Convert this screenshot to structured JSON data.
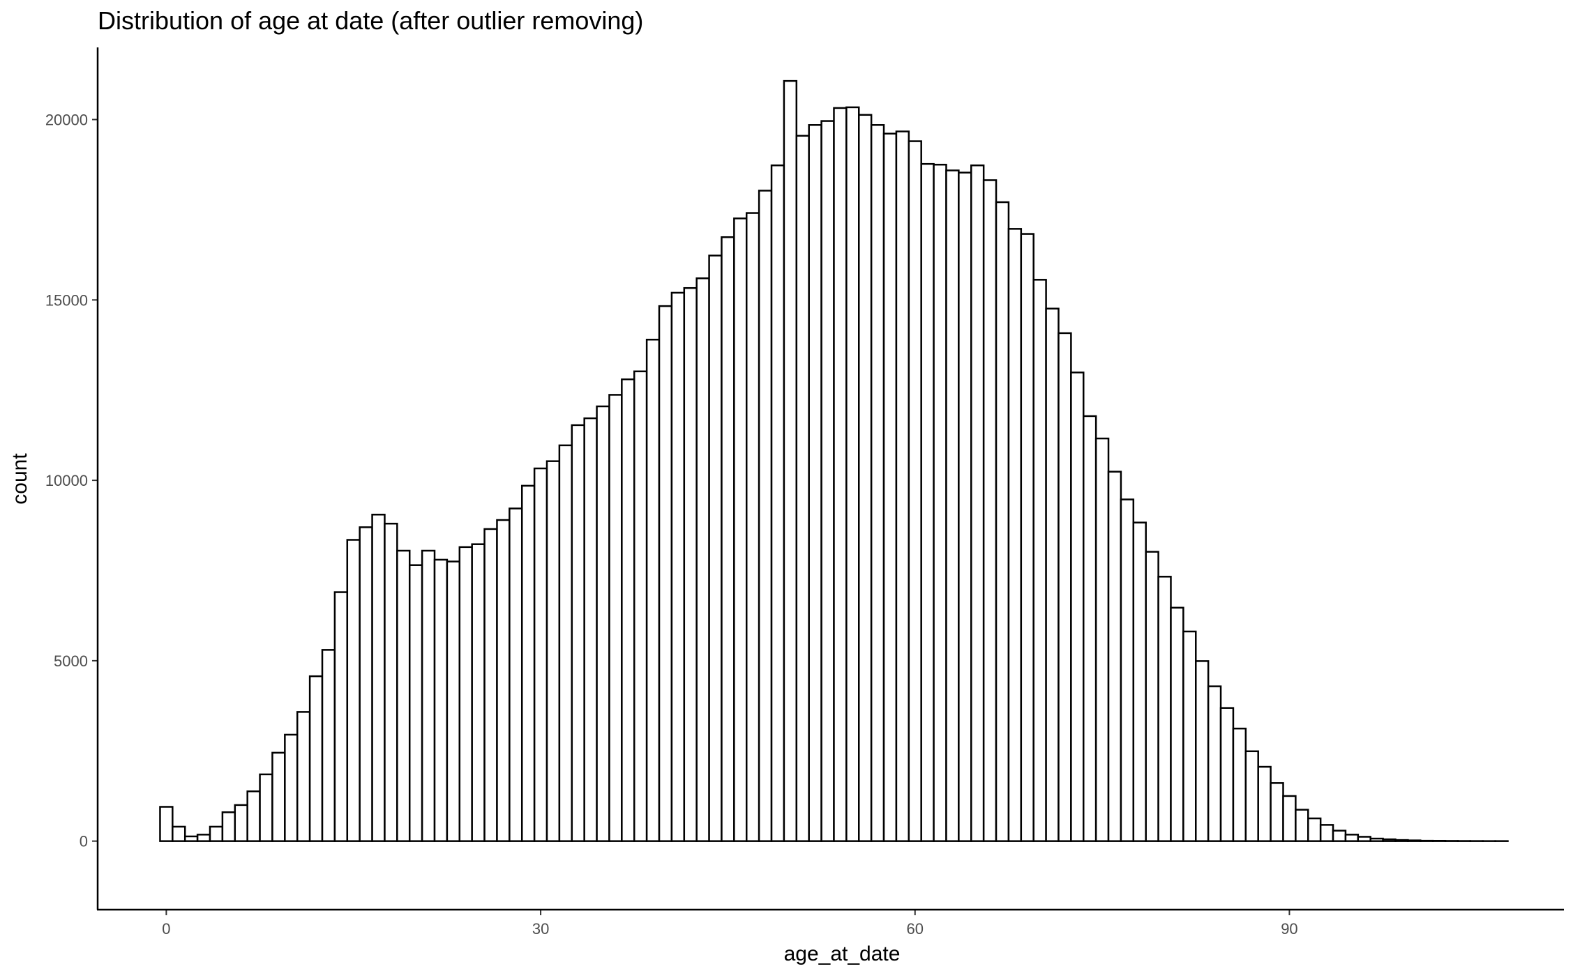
{
  "chart_data": {
    "type": "bar",
    "title": "Distribution of age at date (after outlier removing)",
    "xlabel": "age_at_date",
    "ylabel": "count",
    "xlim": [
      -5.5,
      112
    ],
    "ylim": [
      -1900,
      22000
    ],
    "x_ticks": [
      0,
      30,
      60,
      90
    ],
    "y_ticks": [
      0,
      5000,
      10000,
      15000,
      20000
    ],
    "grid": false,
    "bar_fill": "#ffffff",
    "bar_stroke": "#000000",
    "bins": {
      "start": -0.5,
      "width": 1,
      "counts": [
        950,
        400,
        130,
        180,
        400,
        800,
        1000,
        1380,
        1850,
        2450,
        2950,
        3580,
        4570,
        5300,
        6900,
        8350,
        8700,
        9050,
        8800,
        8050,
        7650,
        8050,
        7800,
        7750,
        8150,
        8230,
        8650,
        8900,
        9220,
        9850,
        10330,
        10530,
        10970,
        11530,
        11720,
        12050,
        12370,
        12800,
        13020,
        13900,
        14830,
        15200,
        15330,
        15600,
        16230,
        16740,
        17260,
        17410,
        18030,
        18730,
        21070,
        19550,
        19850,
        19960,
        20320,
        20340,
        20130,
        19850,
        19610,
        19670,
        19400,
        18770,
        18750,
        18590,
        18530,
        18730,
        18320,
        17710,
        16970,
        16830,
        15560,
        14760,
        14080,
        12990,
        11780,
        11160,
        10240,
        9470,
        8830,
        8020,
        7330,
        6470,
        5810,
        4990,
        4290,
        3690,
        3120,
        2490,
        2060,
        1610,
        1250,
        870,
        630,
        450,
        290,
        180,
        120,
        70,
        50,
        30,
        20,
        10,
        8,
        5,
        3,
        2,
        1,
        1
      ]
    }
  }
}
